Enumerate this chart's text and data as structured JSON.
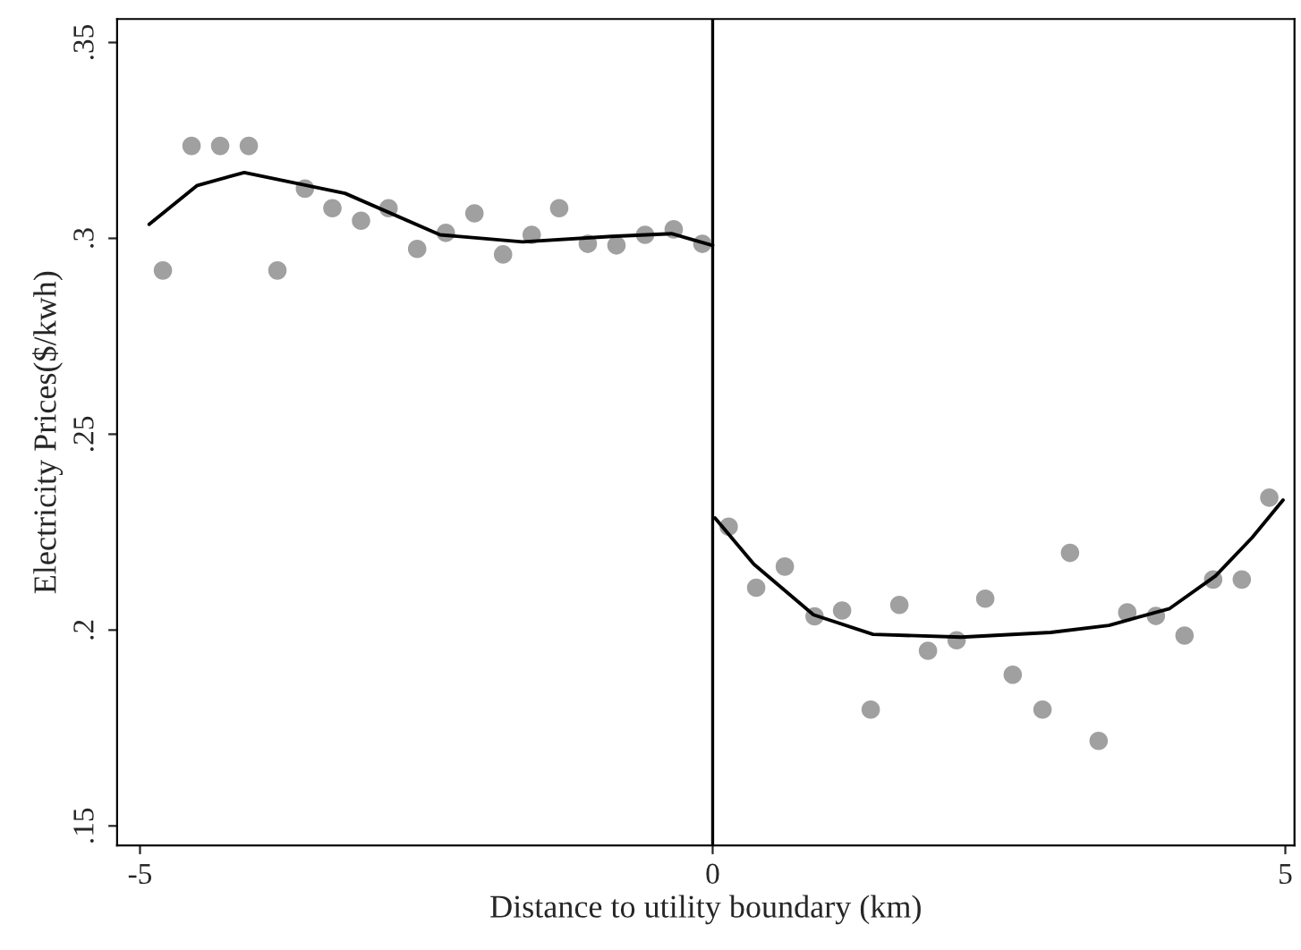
{
  "chart_data": {
    "type": "scatter",
    "xlabel": "Distance to utility boundary (km)",
    "ylabel": "Electricity Prices($/kwh)",
    "xlim": [
      -5.2,
      5.08
    ],
    "ylim": [
      0.145,
      0.356
    ],
    "xticks": [
      -5,
      0,
      5
    ],
    "yticks": [
      {
        "value": 0.15,
        "label": ".15"
      },
      {
        "value": 0.2,
        "label": ".2"
      },
      {
        "value": 0.25,
        "label": ".25"
      },
      {
        "value": 0.3,
        "label": ".3"
      },
      {
        "value": 0.35,
        "label": ".35"
      }
    ],
    "grid": false,
    "legend": false,
    "ref_lines": [
      {
        "axis": "x",
        "value": 0,
        "color": "#000000",
        "line_style": "solid"
      }
    ],
    "series": [
      {
        "marker": "circle",
        "color": "#a0a0a0",
        "x": [
          -4.8,
          -4.55,
          -4.3,
          -4.05,
          -3.8,
          -3.56,
          -3.32,
          -3.07,
          -2.83,
          -2.58,
          -2.33,
          -2.08,
          -1.83,
          -1.58,
          -1.34,
          -1.09,
          -0.84,
          -0.59,
          -0.34,
          -0.09
        ],
        "values": [
          0.2918,
          0.3236,
          0.3236,
          0.3236,
          0.2918,
          0.3127,
          0.3077,
          0.3045,
          0.3077,
          0.2973,
          0.3014,
          0.3064,
          0.2959,
          0.3009,
          0.3077,
          0.2986,
          0.2982,
          0.3009,
          0.3023,
          0.2986
        ]
      },
      {
        "marker": "circle",
        "color": "#a0a0a0",
        "x": [
          0.14,
          0.38,
          0.63,
          0.89,
          1.13,
          1.38,
          1.63,
          1.88,
          2.13,
          2.38,
          2.62,
          2.88,
          3.12,
          3.37,
          3.62,
          3.87,
          4.12,
          4.37,
          4.62,
          4.86
        ],
        "values": [
          0.2264,
          0.2108,
          0.2162,
          0.2035,
          0.205,
          0.1797,
          0.2064,
          0.1947,
          0.1974,
          0.208,
          0.1886,
          0.1797,
          0.2197,
          0.1717,
          0.2045,
          0.2036,
          0.1986,
          0.2129,
          0.2129,
          0.2338
        ]
      },
      {
        "type": "line",
        "marker": "none",
        "line_style": "solid",
        "color": "#000000",
        "x": [
          -4.92,
          -4.5,
          -4.09,
          -3.21,
          -2.38,
          -1.66,
          -0.88,
          -0.36,
          0
        ],
        "values": [
          0.3036,
          0.3135,
          0.3168,
          0.3115,
          0.3009,
          0.2991,
          0.3005,
          0.3012,
          0.2982
        ]
      },
      {
        "type": "line",
        "marker": "none",
        "line_style": "solid",
        "color": "#000000",
        "x": [
          0.02,
          0.36,
          0.88,
          1.4,
          2.17,
          2.95,
          3.46,
          3.99,
          4.39,
          4.71,
          4.98
        ],
        "values": [
          0.2286,
          0.2168,
          0.2039,
          0.1989,
          0.1982,
          0.1994,
          0.2012,
          0.2055,
          0.2138,
          0.2236,
          0.2332
        ]
      }
    ]
  }
}
